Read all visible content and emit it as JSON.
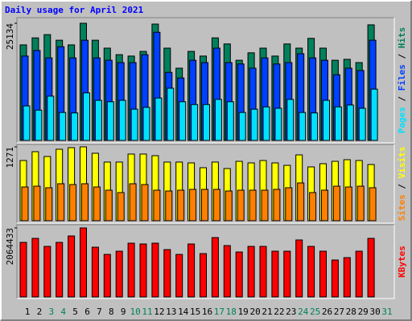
{
  "chart_data": [
    {
      "type": "bar",
      "title": "Daily usage for April 2021",
      "ylim": [
        0,
        25134
      ],
      "yticks": [
        25134
      ],
      "series": [
        {
          "name": "Hits",
          "color": "#00805c",
          "values": [
            20500,
            22000,
            22700,
            21500,
            20500,
            25134,
            21500,
            19800,
            18400,
            18100,
            19100,
            24960,
            19800,
            15500,
            19100,
            18100,
            22000,
            20700,
            17200,
            18800,
            19800,
            18100,
            20700,
            19800,
            21900,
            19800,
            17200,
            17400,
            16700,
            24800,
            null
          ]
        },
        {
          "name": "Files",
          "color": "#0040ff",
          "values": [
            18100,
            19300,
            17700,
            20100,
            17700,
            21500,
            17700,
            17200,
            16700,
            16700,
            18400,
            23200,
            14600,
            13400,
            17200,
            16700,
            19800,
            16700,
            16400,
            15500,
            17700,
            16400,
            16700,
            18600,
            17700,
            17200,
            14100,
            15500,
            15000,
            21500,
            null
          ]
        },
        {
          "name": "Pages",
          "color": "#00e0ff",
          "values": [
            7400,
            6500,
            9500,
            6000,
            5900,
            10200,
            8600,
            8300,
            8600,
            6700,
            7100,
            9100,
            11200,
            8300,
            7700,
            7700,
            8800,
            8300,
            6000,
            6700,
            7200,
            6900,
            8800,
            6000,
            5900,
            8600,
            7200,
            7600,
            6900,
            11000,
            null
          ]
        }
      ]
    },
    {
      "type": "bar",
      "ylim": [
        0,
        1271
      ],
      "yticks": [
        1271
      ],
      "series": [
        {
          "name": "Visits",
          "color": "#ffff00",
          "values": [
            1036,
            1188,
            1105,
            1230,
            1257,
            1271,
            1161,
            1009,
            1009,
            1147,
            1147,
            1119,
            1009,
            1009,
            995,
            912,
            1009,
            898,
            1022,
            995,
            1036,
            995,
            953,
            1133,
            926,
            981,
            1022,
            1050,
            1036,
            967,
            null
          ]
        },
        {
          "name": "Sites",
          "color": "#ff8000",
          "values": [
            580,
            594,
            567,
            636,
            622,
            636,
            580,
            525,
            484,
            636,
            622,
            525,
            511,
            525,
            539,
            539,
            539,
            511,
            525,
            525,
            525,
            539,
            567,
            650,
            484,
            525,
            594,
            580,
            594,
            567,
            null
          ]
        }
      ]
    },
    {
      "type": "bar",
      "ylim": [
        0,
        2064433
      ],
      "yticks": [
        2064433
      ],
      "categories": [
        "1",
        "2",
        "3",
        "4",
        "5",
        "6",
        "7",
        "8",
        "9",
        "10",
        "11",
        "12",
        "13",
        "14",
        "15",
        "16",
        "17",
        "18",
        "19",
        "20",
        "21",
        "22",
        "23",
        "24",
        "25",
        "26",
        "27",
        "28",
        "29",
        "30",
        "31"
      ],
      "category_colors": [
        "#000000",
        "#000000",
        "#00805c",
        "#00805c",
        "#000000",
        "#000000",
        "#000000",
        "#000000",
        "#000000",
        "#00805c",
        "#00805c",
        "#000000",
        "#000000",
        "#000000",
        "#000000",
        "#000000",
        "#00805c",
        "#00805c",
        "#000000",
        "#000000",
        "#000000",
        "#000000",
        "#000000",
        "#00805c",
        "#00805c",
        "#000000",
        "#000000",
        "#000000",
        "#000000",
        "#000000",
        "#00805c"
      ],
      "series": [
        {
          "name": "KBytes",
          "color": "#ff0000",
          "values": [
            1632000,
            1752000,
            1512000,
            1632000,
            1824000,
            2064433,
            1488000,
            1272000,
            1368000,
            1608000,
            1584000,
            1608000,
            1416000,
            1272000,
            1584000,
            1296000,
            1776000,
            1536000,
            1344000,
            1512000,
            1512000,
            1368000,
            1368000,
            1704000,
            1512000,
            1368000,
            1104000,
            1176000,
            1368000,
            1752000,
            null
          ]
        }
      ]
    }
  ]
}
